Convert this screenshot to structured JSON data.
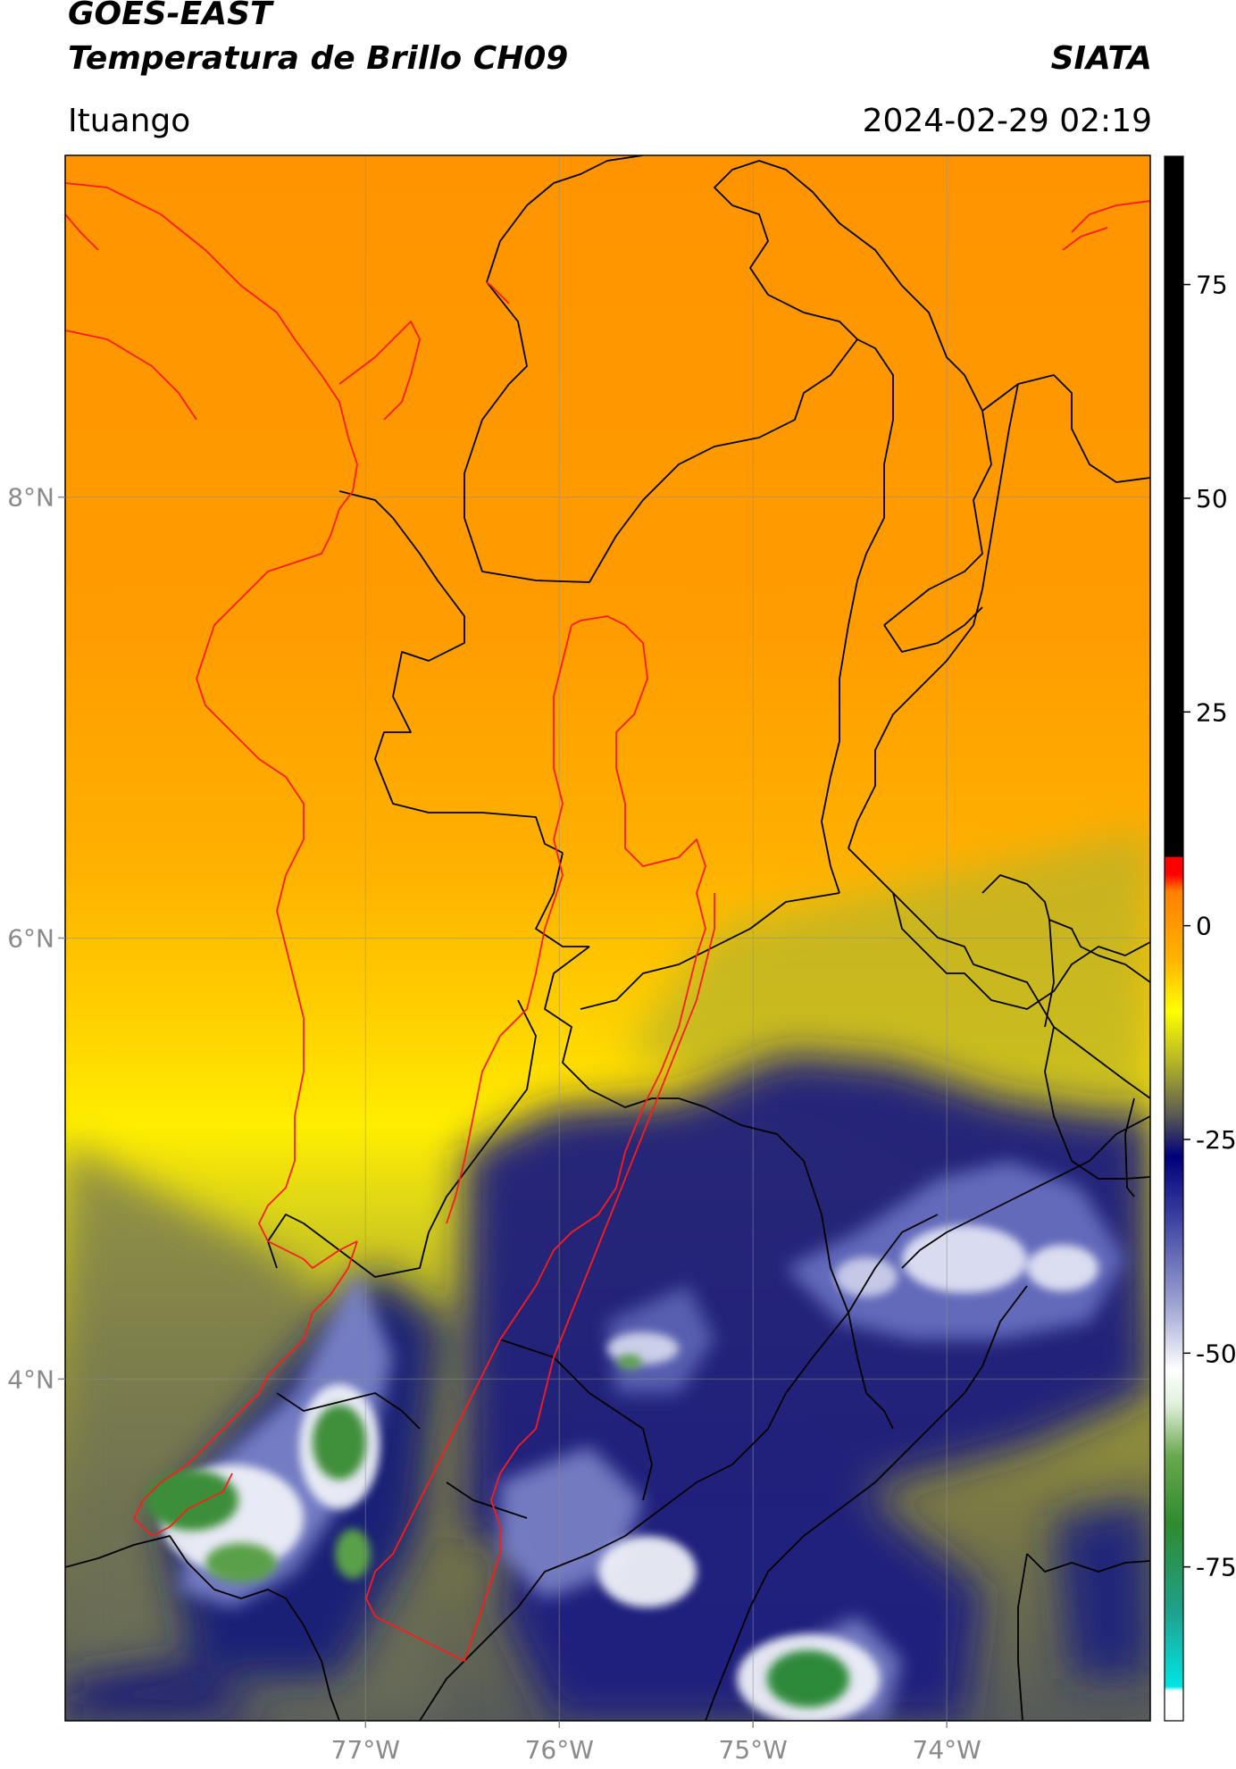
{
  "header": {
    "title_line1": "GOES-EAST",
    "title_line2": "Temperatura de Brillo CH09",
    "brand": "SIATA",
    "location": "Ituango",
    "datetime": "2024-02-29 02:19"
  },
  "map": {
    "lon_ticks": [
      {
        "value": -77,
        "label": "77°W"
      },
      {
        "value": -76,
        "label": "76°W"
      },
      {
        "value": -75,
        "label": "75°W"
      },
      {
        "value": -74,
        "label": "74°W"
      }
    ],
    "lat_ticks": [
      {
        "value": 8,
        "label": "8°N"
      },
      {
        "value": 6,
        "label": "6°N"
      },
      {
        "value": 4,
        "label": "4°N"
      }
    ],
    "extent": {
      "lon_min": -78.55,
      "lon_max": -72.95,
      "lat_min": 2.45,
      "lat_max": 9.55
    }
  },
  "colorbar": {
    "range": [
      -93,
      90
    ],
    "ticks": [
      {
        "value": 75,
        "label": "75"
      },
      {
        "value": 50,
        "label": "50"
      },
      {
        "value": 25,
        "label": "25"
      },
      {
        "value": 0,
        "label": "0"
      },
      {
        "value": -25,
        "label": "-25"
      },
      {
        "value": -50,
        "label": "-50"
      },
      {
        "value": -75,
        "label": "-75"
      }
    ],
    "stops": [
      {
        "value": -93,
        "color": "#ffffff"
      },
      {
        "value": -89.5,
        "color": "#ffffff"
      },
      {
        "value": -89,
        "color": "#00e5e5"
      },
      {
        "value": -80,
        "color": "#1fa08a"
      },
      {
        "value": -70,
        "color": "#2e8b2e"
      },
      {
        "value": -62,
        "color": "#6aa84f"
      },
      {
        "value": -56,
        "color": "#dff0da"
      },
      {
        "value": -52,
        "color": "#ffffff"
      },
      {
        "value": -44,
        "color": "#9aa0d0"
      },
      {
        "value": -34,
        "color": "#3a3fa0"
      },
      {
        "value": -27,
        "color": "#00007a"
      },
      {
        "value": -22,
        "color": "#5c5c52"
      },
      {
        "value": -16,
        "color": "#b4b428"
      },
      {
        "value": -10,
        "color": "#ffff00"
      },
      {
        "value": -4,
        "color": "#ffb400"
      },
      {
        "value": 4,
        "color": "#ff8000"
      },
      {
        "value": 6,
        "color": "#ff0000"
      },
      {
        "value": 8,
        "color": "#ff0000"
      },
      {
        "value": 8.1,
        "color": "#000000"
      },
      {
        "value": 90,
        "color": "#000000"
      }
    ]
  }
}
